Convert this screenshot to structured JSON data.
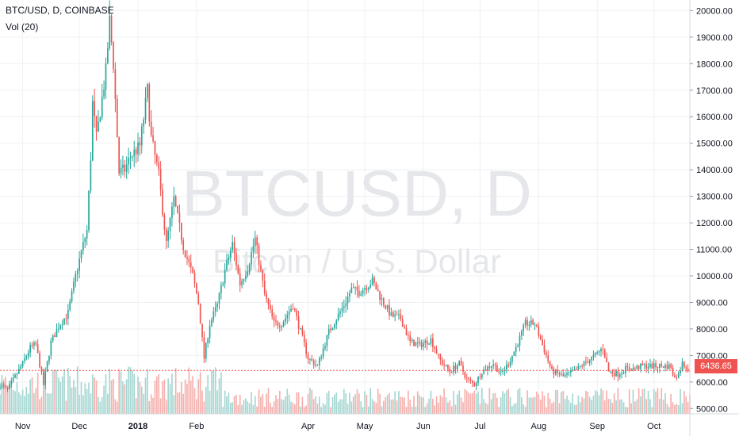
{
  "header": {
    "title": "BTC/USD, D, COINBASE",
    "volume_label": "Vol (20)"
  },
  "watermark": {
    "symbol": "BTCUSD, D",
    "description": "Bitcoin / U.S. Dollar"
  },
  "last_price_label": "6436.65",
  "colors": {
    "up": "#26a69a",
    "down": "#ef5350",
    "volume_up": "#a5d6d1",
    "volume_down": "#f5b0ad",
    "grid": "#eef0f3",
    "axis_text": "#131722",
    "watermark": "#e6e7ea",
    "price_line": "#ef5350"
  },
  "chart_data": {
    "type": "candlestick",
    "symbol": "BTC/USD",
    "interval": "D",
    "exchange": "COINBASE",
    "ylim": [
      4800,
      20400
    ],
    "y_ticks": [
      "20000.00",
      "19000.00",
      "18000.00",
      "17000.00",
      "16000.00",
      "15000.00",
      "14000.00",
      "13000.00",
      "12000.00",
      "11000.00",
      "10000.00",
      "9000.00",
      "8000.00",
      "7000.00",
      "6000.00",
      "5000.00"
    ],
    "y_tick_values": [
      20000,
      19000,
      18000,
      17000,
      16000,
      15000,
      14000,
      13000,
      12000,
      11000,
      10000,
      9000,
      8000,
      7000,
      6000,
      5000
    ],
    "x_ticks": [
      "Nov",
      "Dec",
      "2018",
      "Feb",
      "Apr",
      "May",
      "Jun",
      "Jul",
      "Aug",
      "Sep",
      "Oct"
    ],
    "x_tick_dates": [
      "2017-11-01",
      "2017-12-01",
      "2018-01-01",
      "2018-02-01",
      "2018-04-01",
      "2018-05-01",
      "2018-06-01",
      "2018-07-01",
      "2018-08-01",
      "2018-09-01",
      "2018-10-01"
    ],
    "x_range": [
      "2017-10-20",
      "2018-10-20"
    ],
    "price_anchors": [
      [
        "2017-10-20",
        5900
      ],
      [
        "2017-10-24",
        5700
      ],
      [
        "2017-10-28",
        6200
      ],
      [
        "2017-11-01",
        6700
      ],
      [
        "2017-11-05",
        7300
      ],
      [
        "2017-11-08",
        7400
      ],
      [
        "2017-11-12",
        5900
      ],
      [
        "2017-11-16",
        7500
      ],
      [
        "2017-11-20",
        8100
      ],
      [
        "2017-11-25",
        8600
      ],
      [
        "2017-11-29",
        10000
      ],
      [
        "2017-12-02",
        10900
      ],
      [
        "2017-12-05",
        11700
      ],
      [
        "2017-12-07",
        14500
      ],
      [
        "2017-12-08",
        16500
      ],
      [
        "2017-12-10",
        15200
      ],
      [
        "2017-12-13",
        16700
      ],
      [
        "2017-12-15",
        17700
      ],
      [
        "2017-12-17",
        19600
      ],
      [
        "2017-12-19",
        18000
      ],
      [
        "2017-12-22",
        13900
      ],
      [
        "2017-12-25",
        14000
      ],
      [
        "2017-12-28",
        14500
      ],
      [
        "2018-01-02",
        14900
      ],
      [
        "2018-01-06",
        17000
      ],
      [
        "2018-01-08",
        15200
      ],
      [
        "2018-01-12",
        13800
      ],
      [
        "2018-01-16",
        11200
      ],
      [
        "2018-01-20",
        12900
      ],
      [
        "2018-01-25",
        11100
      ],
      [
        "2018-01-30",
        10000
      ],
      [
        "2018-02-02",
        9000
      ],
      [
        "2018-02-05",
        6900
      ],
      [
        "2018-02-08",
        8200
      ],
      [
        "2018-02-12",
        8900
      ],
      [
        "2018-02-16",
        10200
      ],
      [
        "2018-02-20",
        11200
      ],
      [
        "2018-02-24",
        9700
      ],
      [
        "2018-02-28",
        10300
      ],
      [
        "2018-03-04",
        11400
      ],
      [
        "2018-03-09",
        9300
      ],
      [
        "2018-03-14",
        8200
      ],
      [
        "2018-03-18",
        8200
      ],
      [
        "2018-03-24",
        8900
      ],
      [
        "2018-03-28",
        7900
      ],
      [
        "2018-04-01",
        6900
      ],
      [
        "2018-04-06",
        6600
      ],
      [
        "2018-04-12",
        7900
      ],
      [
        "2018-04-16",
        8400
      ],
      [
        "2018-04-20",
        8900
      ],
      [
        "2018-04-24",
        9500
      ],
      [
        "2018-04-28",
        9400
      ],
      [
        "2018-05-05",
        9800
      ],
      [
        "2018-05-10",
        9100
      ],
      [
        "2018-05-15",
        8500
      ],
      [
        "2018-05-20",
        8400
      ],
      [
        "2018-05-25",
        7500
      ],
      [
        "2018-05-30",
        7400
      ],
      [
        "2018-06-05",
        7600
      ],
      [
        "2018-06-10",
        6800
      ],
      [
        "2018-06-15",
        6400
      ],
      [
        "2018-06-20",
        6700
      ],
      [
        "2018-06-24",
        6100
      ],
      [
        "2018-06-28",
        5900
      ],
      [
        "2018-07-02",
        6400
      ],
      [
        "2018-07-08",
        6700
      ],
      [
        "2018-07-12",
        6300
      ],
      [
        "2018-07-16",
        6700
      ],
      [
        "2018-07-20",
        7300
      ],
      [
        "2018-07-25",
        8200
      ],
      [
        "2018-07-30",
        8200
      ],
      [
        "2018-08-03",
        7400
      ],
      [
        "2018-08-08",
        6400
      ],
      [
        "2018-08-12",
        6300
      ],
      [
        "2018-08-14",
        6200
      ],
      [
        "2018-08-20",
        6400
      ],
      [
        "2018-08-25",
        6700
      ],
      [
        "2018-08-31",
        7000
      ],
      [
        "2018-09-04",
        7300
      ],
      [
        "2018-09-07",
        6400
      ],
      [
        "2018-09-12",
        6300
      ],
      [
        "2018-09-16",
        6500
      ],
      [
        "2018-09-20",
        6500
      ],
      [
        "2018-09-25",
        6600
      ],
      [
        "2018-09-30",
        6600
      ],
      [
        "2018-10-05",
        6600
      ],
      [
        "2018-10-10",
        6600
      ],
      [
        "2018-10-11",
        6200
      ],
      [
        "2018-10-14",
        6300
      ],
      [
        "2018-10-16",
        6700
      ],
      [
        "2018-10-20",
        6440
      ]
    ],
    "last_price": 6436.65,
    "volume_series": "Vol (20)"
  }
}
